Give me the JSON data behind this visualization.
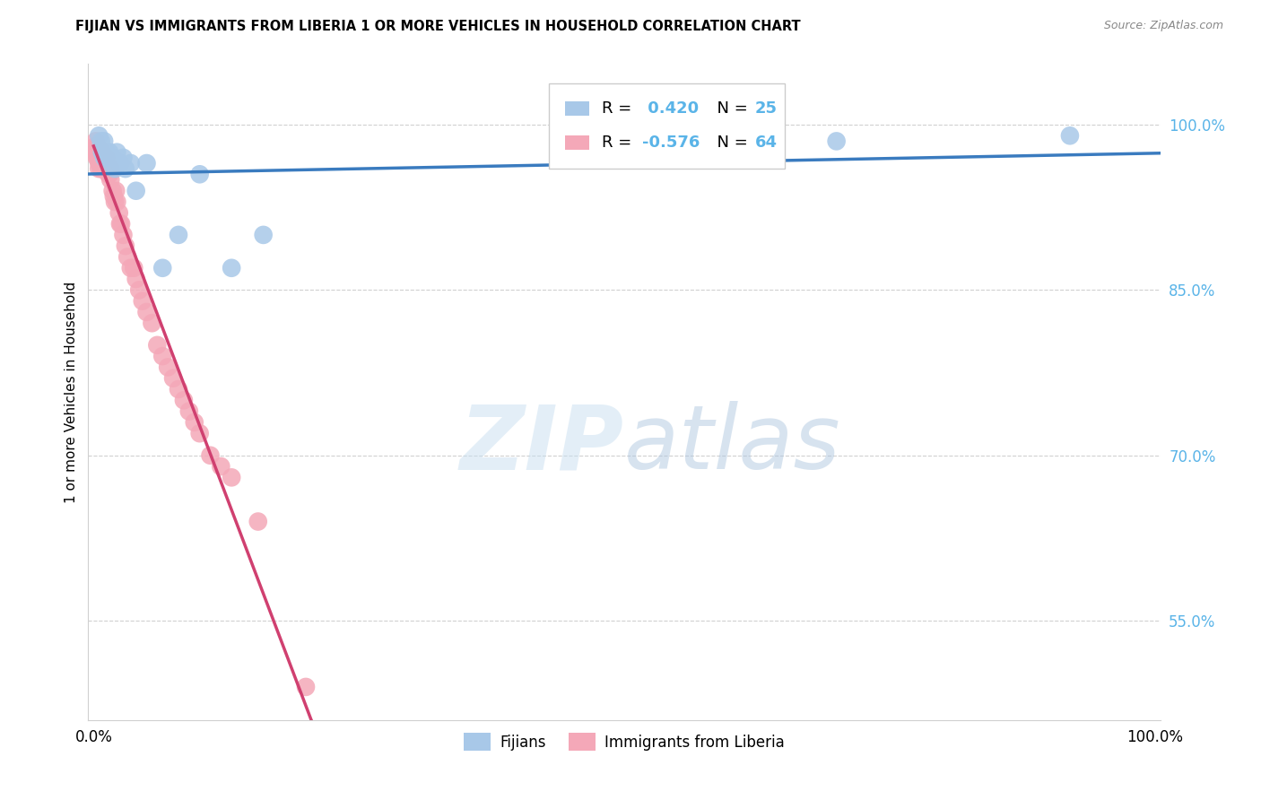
{
  "title": "FIJIAN VS IMMIGRANTS FROM LIBERIA 1 OR MORE VEHICLES IN HOUSEHOLD CORRELATION CHART",
  "source": "Source: ZipAtlas.com",
  "ylabel": "1 or more Vehicles in Household",
  "xlim": [
    -0.005,
    1.005
  ],
  "ylim": [
    0.46,
    1.055
  ],
  "yticks": [
    0.55,
    0.7,
    0.85,
    1.0
  ],
  "ytick_labels": [
    "55.0%",
    "70.0%",
    "85.0%",
    "100.0%"
  ],
  "xtick_positions": [
    0.0,
    0.2,
    0.4,
    0.6,
    0.8,
    1.0
  ],
  "xtick_labels": [
    "0.0%",
    "",
    "",
    "",
    "",
    "100.0%"
  ],
  "blue_color": "#a8c8e8",
  "pink_color": "#f4a8b8",
  "blue_line_color": "#3a7bbf",
  "pink_line_color": "#d04070",
  "pink_dash_color": "#e8a0b8",
  "background_color": "#ffffff",
  "grid_color": "#d0d0d0",
  "ytick_color": "#5ab4e8",
  "fijian_x": [
    0.005,
    0.007,
    0.008,
    0.01,
    0.01,
    0.012,
    0.013,
    0.015,
    0.016,
    0.018,
    0.02,
    0.022,
    0.025,
    0.028,
    0.03,
    0.035,
    0.04,
    0.05,
    0.065,
    0.08,
    0.1,
    0.13,
    0.16,
    0.7,
    0.92
  ],
  "fijian_y": [
    0.99,
    0.985,
    0.975,
    0.985,
    0.97,
    0.975,
    0.97,
    0.975,
    0.965,
    0.97,
    0.96,
    0.975,
    0.965,
    0.97,
    0.96,
    0.965,
    0.94,
    0.965,
    0.87,
    0.9,
    0.955,
    0.87,
    0.9,
    0.985,
    0.99
  ],
  "liberia_x": [
    0.001,
    0.002,
    0.002,
    0.003,
    0.003,
    0.004,
    0.004,
    0.005,
    0.005,
    0.005,
    0.006,
    0.006,
    0.007,
    0.007,
    0.007,
    0.008,
    0.008,
    0.008,
    0.009,
    0.009,
    0.01,
    0.01,
    0.01,
    0.011,
    0.011,
    0.012,
    0.012,
    0.013,
    0.014,
    0.015,
    0.016,
    0.016,
    0.018,
    0.019,
    0.02,
    0.021,
    0.022,
    0.024,
    0.025,
    0.026,
    0.028,
    0.03,
    0.032,
    0.035,
    0.038,
    0.04,
    0.043,
    0.046,
    0.05,
    0.055,
    0.06,
    0.065,
    0.07,
    0.075,
    0.08,
    0.085,
    0.09,
    0.095,
    0.1,
    0.11,
    0.12,
    0.13,
    0.155,
    0.2
  ],
  "liberia_y": [
    0.98,
    0.975,
    0.985,
    0.975,
    0.97,
    0.98,
    0.97,
    0.975,
    0.965,
    0.96,
    0.97,
    0.965,
    0.975,
    0.96,
    0.97,
    0.965,
    0.975,
    0.96,
    0.97,
    0.965,
    0.965,
    0.96,
    0.97,
    0.96,
    0.965,
    0.96,
    0.97,
    0.96,
    0.955,
    0.955,
    0.96,
    0.95,
    0.94,
    0.935,
    0.93,
    0.94,
    0.93,
    0.92,
    0.91,
    0.91,
    0.9,
    0.89,
    0.88,
    0.87,
    0.87,
    0.86,
    0.85,
    0.84,
    0.83,
    0.82,
    0.8,
    0.79,
    0.78,
    0.77,
    0.76,
    0.75,
    0.74,
    0.73,
    0.72,
    0.7,
    0.69,
    0.68,
    0.64,
    0.49
  ],
  "watermark": "ZIPatlas",
  "watermark_zip_color": "#c8dff0",
  "watermark_atlas_color": "#b0c8e0"
}
